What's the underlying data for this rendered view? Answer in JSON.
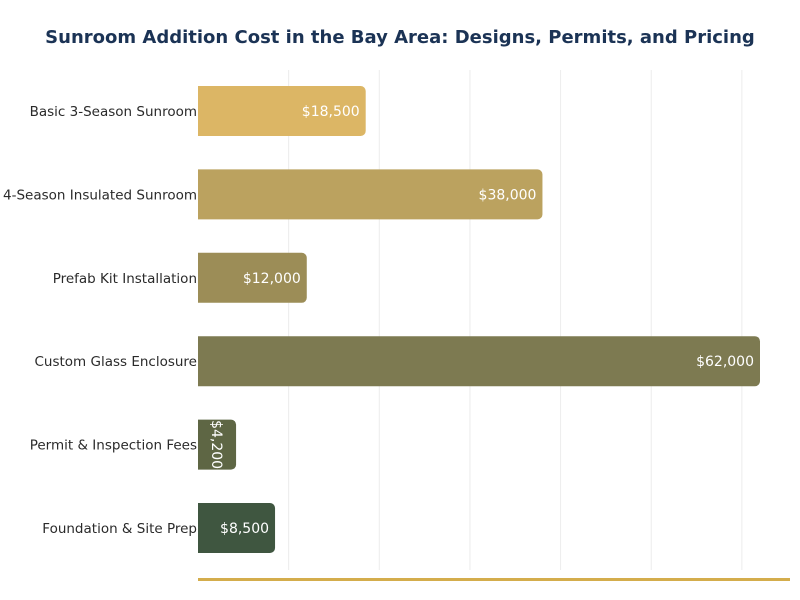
{
  "chart_data": {
    "type": "bar",
    "orientation": "horizontal",
    "title": "Sunroom Addition Cost in the Bay Area: Designs, Permits, and Pricing",
    "xlabel": "",
    "ylabel": "",
    "xlim": [
      0,
      65000
    ],
    "grid": true,
    "categories": [
      "Basic 3-Season Sunroom",
      "4-Season Insulated Sunroom",
      "Prefab Kit Installation",
      "Custom Glass Enclosure",
      "Permit & Inspection Fees",
      "Foundation & Site Prep"
    ],
    "values": [
      18500,
      38000,
      12000,
      62000,
      4200,
      8500
    ],
    "value_labels": [
      "$18,500",
      "$38,000",
      "$12,000",
      "$62,000",
      "$4,200",
      "$8,500"
    ],
    "colors": [
      "#dcb665",
      "#bba25f",
      "#9c8d57",
      "#7d7a51",
      "#5e6644",
      "#3f5640"
    ],
    "axis_color": "#d4ad4c"
  }
}
